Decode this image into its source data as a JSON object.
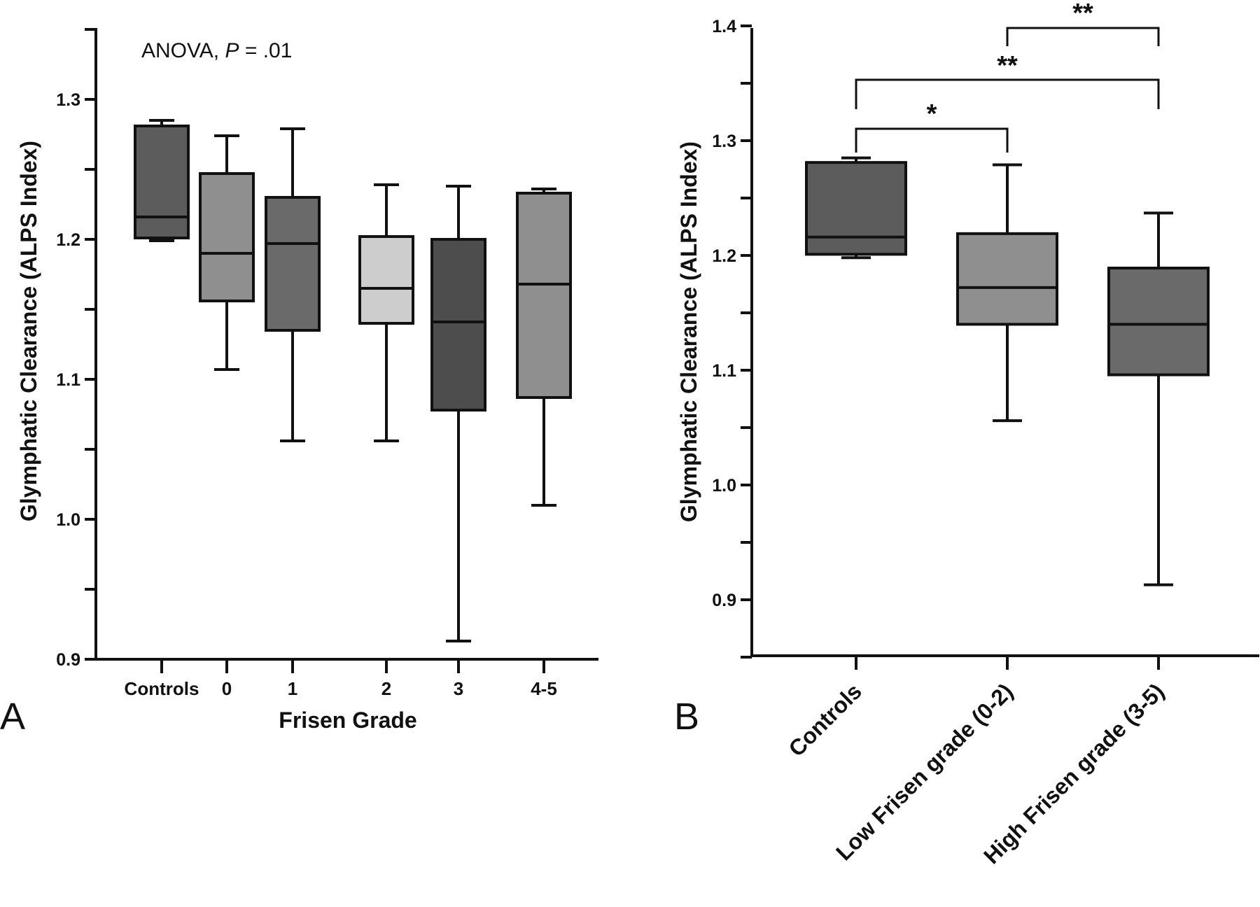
{
  "chart_data": [
    {
      "type": "box",
      "panel_label": "A",
      "annotation": {
        "prefix": "ANOVA, ",
        "italic": "P",
        "suffix": " = .01"
      },
      "xlabel": "Frisen Grade",
      "ylabel": "Glymphatic Clearance (ALPS Index)",
      "ylim": [
        0.9,
        1.35
      ],
      "yticks": [
        "0.9",
        "1.0",
        "1.1",
        "1.2",
        "1.3"
      ],
      "categories": [
        "Controls",
        "0",
        "1",
        "2",
        "3",
        "4-5"
      ],
      "boxes": [
        {
          "min": 1.199,
          "q1": 1.201,
          "median": 1.216,
          "q3": 1.281,
          "max": 1.285,
          "fill": "#5c5c5c"
        },
        {
          "min": 1.107,
          "q1": 1.156,
          "median": 1.19,
          "q3": 1.247,
          "max": 1.274,
          "fill": "#8f8f8f"
        },
        {
          "min": 1.056,
          "q1": 1.135,
          "median": 1.197,
          "q3": 1.23,
          "max": 1.279,
          "fill": "#6a6a6a"
        },
        {
          "min": 1.056,
          "q1": 1.14,
          "median": 1.165,
          "q3": 1.202,
          "max": 1.239,
          "fill": "#cdcdcd"
        },
        {
          "min": 0.913,
          "q1": 1.078,
          "median": 1.141,
          "q3": 1.2,
          "max": 1.238,
          "fill": "#4d4d4d"
        },
        {
          "min": 1.01,
          "q1": 1.087,
          "median": 1.168,
          "q3": 1.233,
          "max": 1.236,
          "fill": "#8f8f8f"
        }
      ]
    },
    {
      "type": "box",
      "panel_label": "B",
      "ylabel": "Glymphatic Clearance (ALPS Index)",
      "ylim": [
        0.85,
        1.4
      ],
      "yticks": [
        "0.9",
        "1.0",
        "1.1",
        "1.2",
        "1.3",
        "1.4"
      ],
      "categories": [
        "Controls",
        "Low Frisen grade (0-2)",
        "High Frisen grade (3-5)"
      ],
      "boxes": [
        {
          "min": 1.198,
          "q1": 1.201,
          "median": 1.216,
          "q3": 1.281,
          "max": 1.285,
          "fill": "#5c5c5c"
        },
        {
          "min": 1.056,
          "q1": 1.14,
          "median": 1.172,
          "q3": 1.219,
          "max": 1.279,
          "fill": "#8f8f8f"
        },
        {
          "min": 0.913,
          "q1": 1.096,
          "median": 1.14,
          "q3": 1.189,
          "max": 1.237,
          "fill": "#6a6a6a"
        }
      ],
      "significance": [
        {
          "from": 0,
          "to": 1,
          "label": "*"
        },
        {
          "from": 0,
          "to": 2,
          "label": "**"
        },
        {
          "from": 1,
          "to": 2,
          "label": "**"
        }
      ]
    }
  ]
}
